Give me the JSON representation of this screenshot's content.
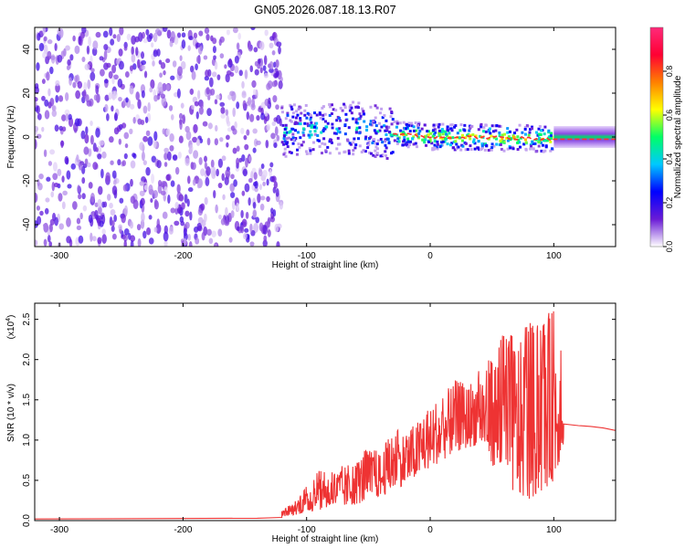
{
  "title": "GN05.2026.087.18.13.R07",
  "chart_data": [
    {
      "type": "heatmap",
      "title": "GN05.2026.087.18.13.R07",
      "xlabel": "Height of straight line (km)",
      "ylabel": "Frequency (Hz)",
      "xlim": [
        -320,
        150
      ],
      "ylim": [
        -50,
        50
      ],
      "x_ticks": [
        -300,
        -200,
        -100,
        0,
        100
      ],
      "y_ticks": [
        -40,
        -20,
        0,
        20,
        40
      ],
      "x_tick_labels": [
        "-300",
        "-200",
        "-100",
        "0",
        "100"
      ],
      "y_tick_labels": [
        "-40",
        "-20",
        "0",
        "20",
        "40"
      ],
      "colorbar": {
        "label": "Normalized spectral amplitude",
        "range": [
          0,
          1
        ],
        "ticks": [
          0.0,
          0.2,
          0.4,
          0.6,
          0.8
        ],
        "tick_labels": [
          "0.0",
          "0.2",
          "0.4",
          "0.6",
          "0.8"
        ],
        "colormap": [
          "#ffffff",
          "#6a1bd6",
          "#0000ff",
          "#00c8ff",
          "#00ff66",
          "#ffff00",
          "#ff8000",
          "#ff0033",
          "#ff2a7a"
        ]
      },
      "regions": [
        {
          "x_range": [
            -320,
            -120
          ],
          "frequency_range": [
            -50,
            50
          ],
          "amplitude": 0.1
        },
        {
          "x_range": [
            -120,
            -30
          ],
          "frequency_range": [
            -12,
            12
          ],
          "amplitude": 0.3
        },
        {
          "x_range": [
            -30,
            100
          ],
          "frequency_range": [
            -6,
            6
          ],
          "amplitude": 0.6
        },
        {
          "x_range": [
            100,
            150
          ],
          "frequency_range": [
            -3,
            3
          ],
          "amplitude": 0.5
        }
      ],
      "ridge": {
        "x": [
          -120,
          -60,
          -20,
          0,
          40,
          100,
          150
        ],
        "frequency": [
          3,
          4,
          1,
          0,
          0,
          -1,
          -1
        ]
      }
    },
    {
      "type": "line",
      "xlabel": "Height of straight line (km)",
      "ylabel": "SNR (10 * v/v)",
      "y_multiplier": "(x10",
      "y_multiplier_exp": "4",
      "y_multiplier_close": ")",
      "xlim": [
        -320,
        150
      ],
      "ylim": [
        0,
        2.7
      ],
      "x_ticks": [
        -300,
        -200,
        -100,
        0,
        100
      ],
      "y_ticks": [
        0.0,
        0.5,
        1.0,
        1.5,
        2.0,
        2.5
      ],
      "x_tick_labels": [
        "-300",
        "-200",
        "-100",
        "0",
        "100"
      ],
      "y_tick_labels": [
        "0.0",
        "0.5",
        "1.0",
        "1.5",
        "2.0",
        "2.5"
      ],
      "grid": false,
      "series": [
        {
          "color": "#ee3333",
          "baseline": {
            "x": [
              -320,
              -140,
              -120
            ],
            "y": [
              0.02,
              0.03,
              0.04
            ]
          },
          "envelope": {
            "x": [
              -120,
              -110,
              -100,
              -90,
              -80,
              -70,
              -60,
              -50,
              -40,
              -30,
              -20,
              -10,
              0,
              10,
              20,
              30,
              40,
              50,
              60,
              70,
              80,
              90,
              100,
              108
            ],
            "lower": [
              0.05,
              0.07,
              0.1,
              0.12,
              0.15,
              0.17,
              0.2,
              0.25,
              0.3,
              0.38,
              0.45,
              0.55,
              0.65,
              0.75,
              0.85,
              0.9,
              0.95,
              0.7,
              0.45,
              0.3,
              0.25,
              0.35,
              0.5,
              0.9
            ],
            "upper": [
              0.12,
              0.25,
              0.45,
              0.62,
              0.6,
              0.7,
              0.75,
              0.95,
              0.85,
              1.15,
              1.1,
              1.25,
              1.5,
              1.55,
              1.75,
              1.7,
              1.9,
              2.05,
              2.4,
              2.3,
              2.5,
              2.45,
              2.68,
              1.9
            ]
          },
          "tail": {
            "x": [
              108,
              120,
              130,
              140,
              150
            ],
            "y": [
              1.2,
              1.18,
              1.17,
              1.15,
              1.12
            ]
          }
        }
      ]
    }
  ]
}
